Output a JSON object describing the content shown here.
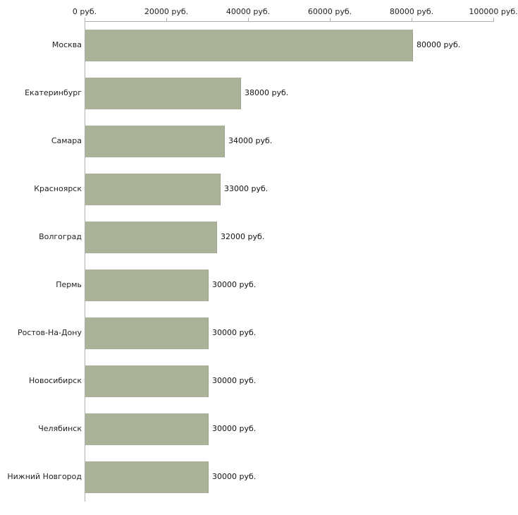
{
  "chart_data": {
    "type": "bar",
    "orientation": "horizontal",
    "title": "",
    "xlabel": "",
    "ylabel": "",
    "xlim": [
      0,
      100000
    ],
    "grid": false,
    "bar_color": "#aab29a",
    "bar_border_color": "#9aa58b",
    "axis_color": "#b0b0b0",
    "text_color": "#222222",
    "x_ticks": [
      "0 руб.",
      "20000 руб.",
      "40000 руб.",
      "60000 руб.",
      "80000 руб.",
      "100000 руб."
    ],
    "x_tick_values": [
      0,
      20000,
      40000,
      60000,
      80000,
      100000
    ],
    "categories": [
      "Москва",
      "Екатеринбург",
      "Самара",
      "Красноярск",
      "Волгоград",
      "Пермь",
      "Ростов-На-Дону",
      "Новосибирск",
      "Челябинск",
      "Нижний Новгород"
    ],
    "values": [
      80000,
      38000,
      34000,
      33000,
      32000,
      30000,
      30000,
      30000,
      30000,
      30000
    ],
    "value_labels": [
      "80000 руб.",
      "38000 руб.",
      "34000 руб.",
      "33000 руб.",
      "32000 руб.",
      "30000 руб.",
      "30000 руб.",
      "30000 руб.",
      "30000 руб.",
      "30000 руб."
    ]
  }
}
